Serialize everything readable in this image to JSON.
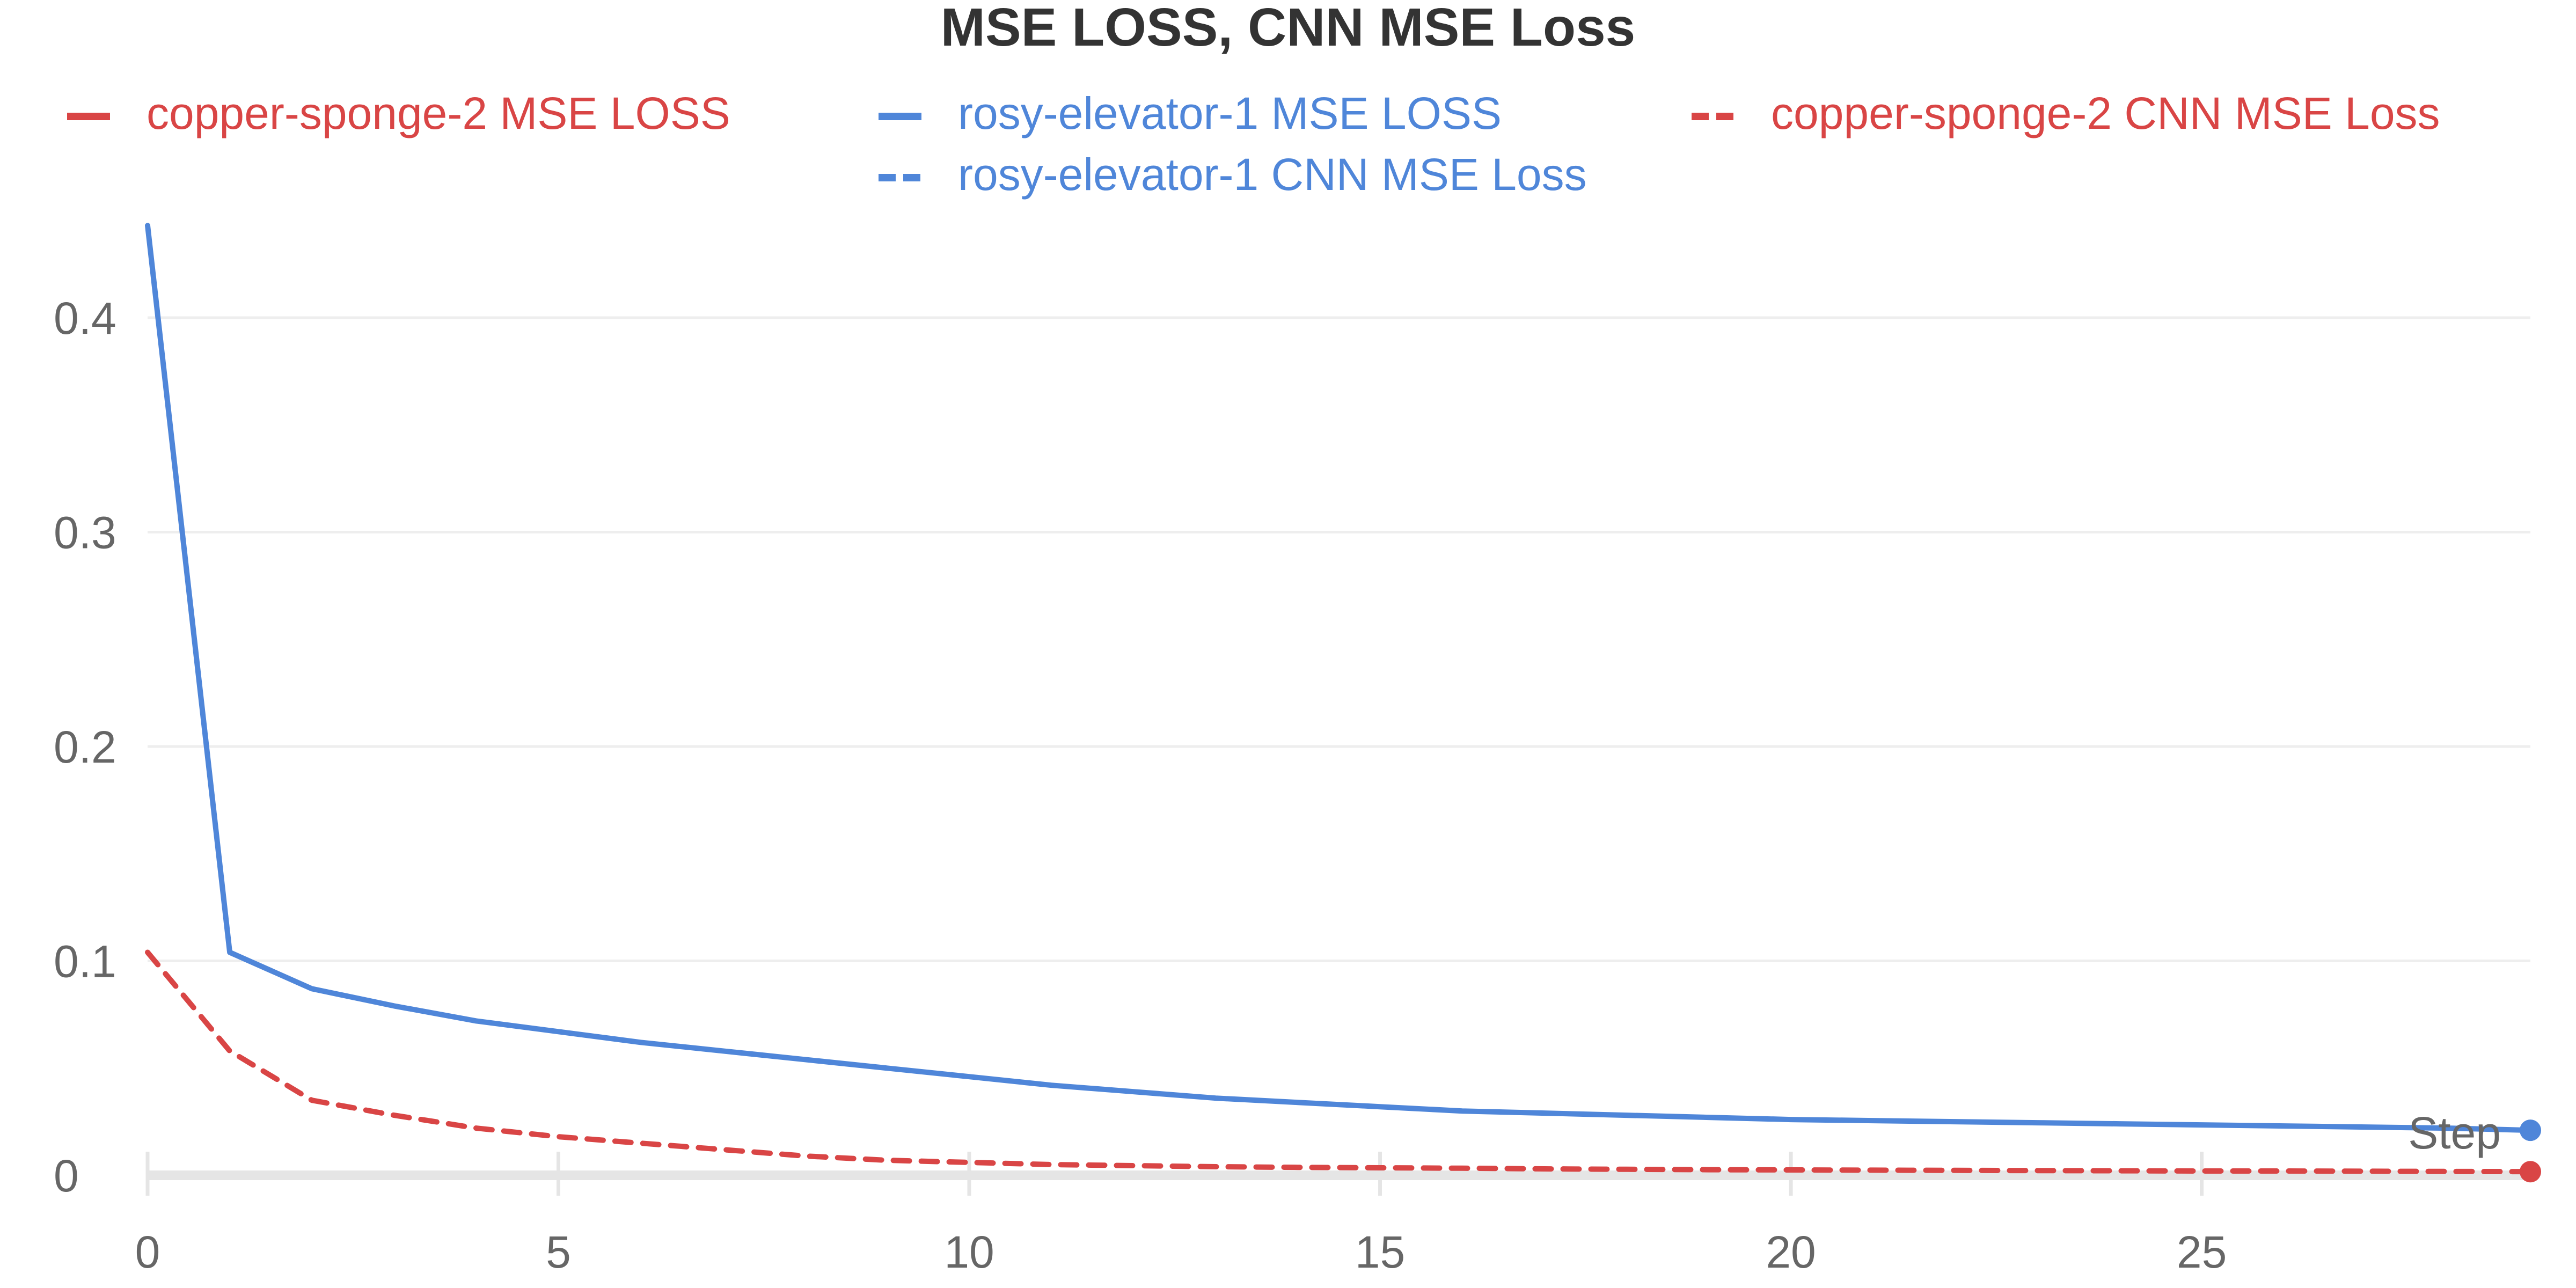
{
  "chart_data": {
    "type": "line",
    "title": "MSE LOSS, CNN MSE Loss",
    "xlabel": "Step",
    "ylabel": "",
    "xlim": [
      0,
      29
    ],
    "ylim": [
      0,
      0.45
    ],
    "x_ticks": [
      0,
      5,
      10,
      15,
      20,
      25
    ],
    "y_ticks": [
      0,
      0.1,
      0.2,
      0.3,
      0.4
    ],
    "x_tick_labels": [
      "0",
      "5",
      "10",
      "15",
      "20",
      "25"
    ],
    "y_tick_labels": [
      "0",
      "0.1",
      "0.2",
      "0.3",
      "0.4"
    ],
    "grid": true,
    "legend_position": "top",
    "series": [
      {
        "name": "copper-sponge-2 MSE LOSS",
        "color": "#d94545",
        "dash": "solid",
        "x": [],
        "values": []
      },
      {
        "name": "rosy-elevator-1 MSE LOSS",
        "color": "#4f86d9",
        "dash": "solid",
        "x": [
          0,
          1,
          2,
          3,
          4,
          5,
          6,
          7,
          8,
          9,
          10,
          11,
          12,
          13,
          14,
          15,
          16,
          17,
          18,
          19,
          20,
          21,
          22,
          23,
          24,
          25,
          26,
          27,
          28,
          29
        ],
        "values": [
          0.443,
          0.104,
          0.087,
          0.079,
          0.072,
          0.067,
          0.062,
          0.058,
          0.054,
          0.05,
          0.046,
          0.042,
          0.039,
          0.036,
          0.034,
          0.032,
          0.03,
          0.029,
          0.028,
          0.027,
          0.026,
          0.0255,
          0.025,
          0.0245,
          0.024,
          0.0235,
          0.023,
          0.0225,
          0.022,
          0.021
        ]
      },
      {
        "name": "copper-sponge-2 CNN MSE Loss",
        "color": "#d94545",
        "dash": "dashed",
        "x": [
          0,
          1,
          2,
          3,
          4,
          5,
          6,
          7,
          8,
          9,
          10,
          11,
          12,
          13,
          14,
          15,
          16,
          17,
          18,
          19,
          20,
          21,
          22,
          23,
          24,
          25,
          26,
          27,
          28,
          29
        ],
        "values": [
          0.104,
          0.058,
          0.035,
          0.028,
          0.022,
          0.018,
          0.015,
          0.012,
          0.009,
          0.007,
          0.006,
          0.005,
          0.0045,
          0.004,
          0.0037,
          0.0035,
          0.0033,
          0.003,
          0.0028,
          0.0026,
          0.0025,
          0.0024,
          0.0023,
          0.0022,
          0.0021,
          0.002,
          0.002,
          0.0019,
          0.0018,
          0.0017
        ]
      },
      {
        "name": "rosy-elevator-1 CNN MSE Loss",
        "color": "#4f86d9",
        "dash": "dashed",
        "x": [],
        "values": []
      }
    ]
  }
}
